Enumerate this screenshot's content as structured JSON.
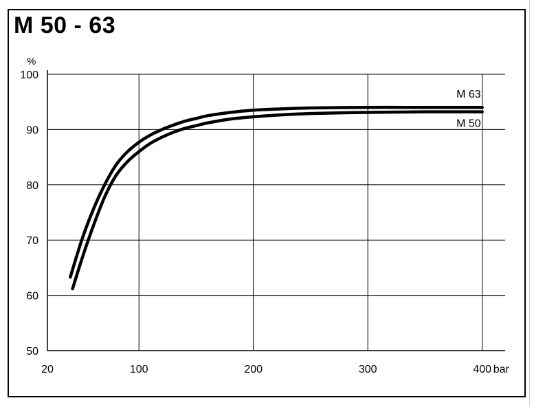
{
  "page": {
    "title": "M 50 - 63"
  },
  "chart_data": {
    "type": "line",
    "title": "M 50 - 63",
    "xlabel": "",
    "ylabel": "",
    "y_unit": "%",
    "x_unit": "bar",
    "xlim": [
      20,
      420
    ],
    "ylim": [
      50,
      100
    ],
    "x_ticks": [
      20,
      100,
      200,
      300,
      400
    ],
    "y_ticks": [
      50,
      60,
      70,
      80,
      90,
      100
    ],
    "x_tick_labels": [
      "20",
      "100",
      "200",
      "300",
      "400"
    ],
    "y_tick_labels": [
      "50",
      "60",
      "70",
      "80",
      "90",
      "100"
    ],
    "grid": true,
    "line_color": "#000000",
    "series": [
      {
        "name": "M 63",
        "x": [
          40,
          50,
          60,
          70,
          80,
          90,
          100,
          110,
          120,
          130,
          140,
          150,
          160,
          180,
          200,
          220,
          250,
          300,
          350,
          400
        ],
        "y": [
          63.3,
          70,
          75.5,
          80,
          83.6,
          86,
          87.7,
          89,
          90,
          90.8,
          91.5,
          92,
          92.5,
          93.1,
          93.5,
          93.7,
          93.9,
          94,
          94,
          94
        ]
      },
      {
        "name": "M 50",
        "x": [
          42,
          50,
          60,
          70,
          80,
          90,
          100,
          110,
          120,
          130,
          140,
          150,
          160,
          180,
          200,
          220,
          250,
          300,
          350,
          400
        ],
        "y": [
          61.2,
          66.5,
          72.5,
          77.8,
          81.7,
          84.2,
          86,
          87.5,
          88.6,
          89.5,
          90.2,
          90.7,
          91.2,
          91.9,
          92.3,
          92.6,
          92.9,
          93.1,
          93.2,
          93.2
        ]
      }
    ]
  }
}
